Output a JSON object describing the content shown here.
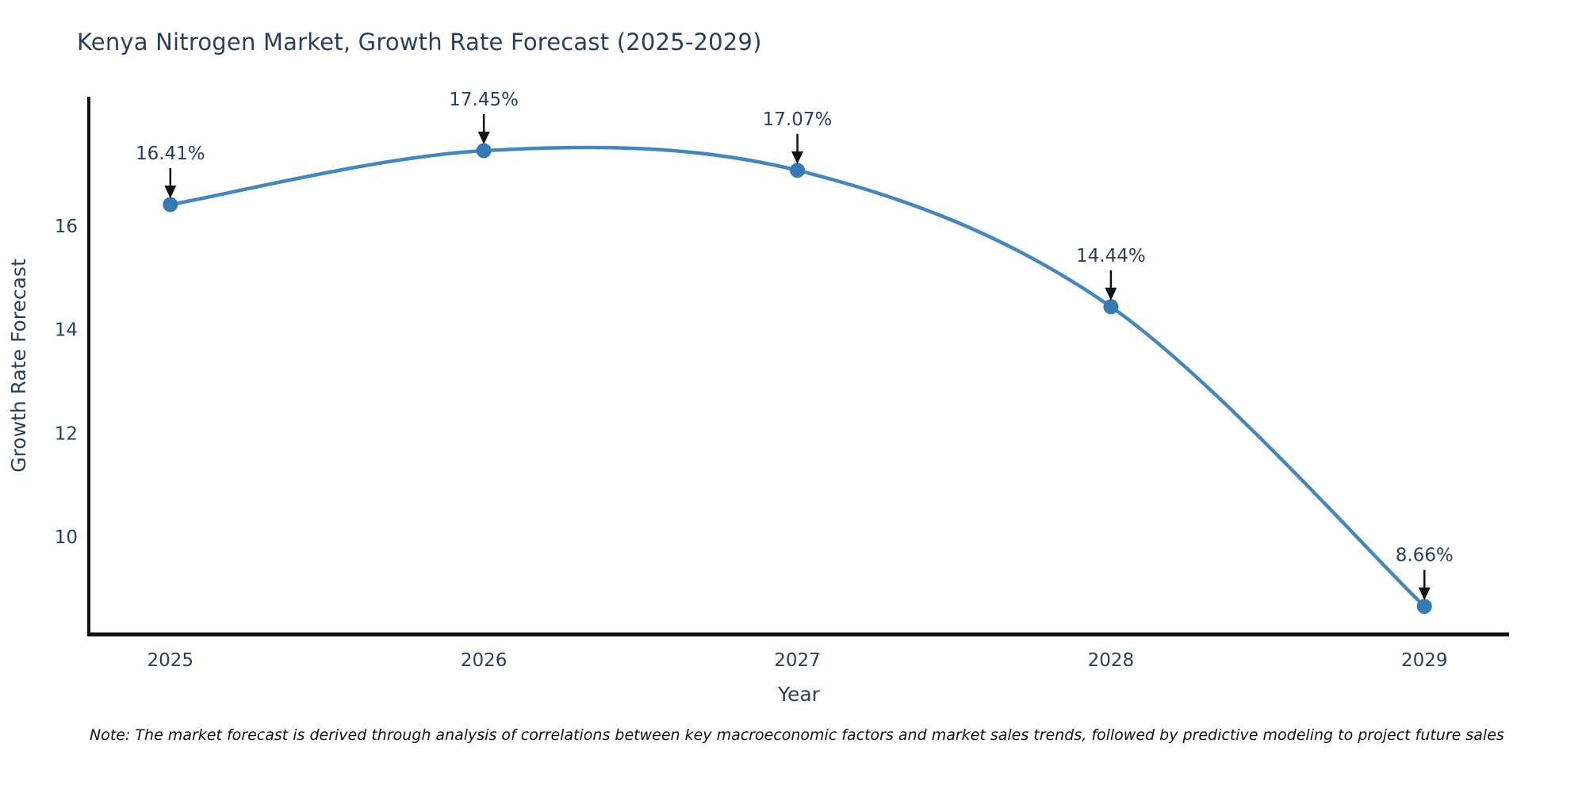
{
  "title": "Kenya Nitrogen Market, Growth Rate Forecast (2025-2029)",
  "note": "Note: The market forecast is derived through analysis of correlations between key macroeconomic factors and market sales trends, followed by predictive modeling to project future sales",
  "colors": {
    "line": "#4287c0",
    "marker": "#3579b5",
    "text": "#2a3f5f",
    "axis": "#111111",
    "annotation": "#111111"
  },
  "chart_data": {
    "type": "line",
    "title": "Kenya Nitrogen Market, Growth Rate Forecast (2025-2029)",
    "x": [
      2025,
      2026,
      2027,
      2028,
      2029
    ],
    "y": [
      16.41,
      17.45,
      17.07,
      14.44,
      8.66
    ],
    "point_labels": [
      "16.41%",
      "17.45%",
      "17.07%",
      "14.44%",
      "8.66%"
    ],
    "xlabel": "Year",
    "ylabel": "Growth Rate Forecast",
    "xticks": [
      2025,
      2026,
      2027,
      2028,
      2029
    ],
    "yticks": [
      10,
      12,
      14,
      16
    ],
    "xlim": [
      2024.74,
      2029.27
    ],
    "ylim": [
      8.12,
      18.49
    ],
    "grid": false,
    "legend": "none",
    "line_shape": "spline"
  }
}
